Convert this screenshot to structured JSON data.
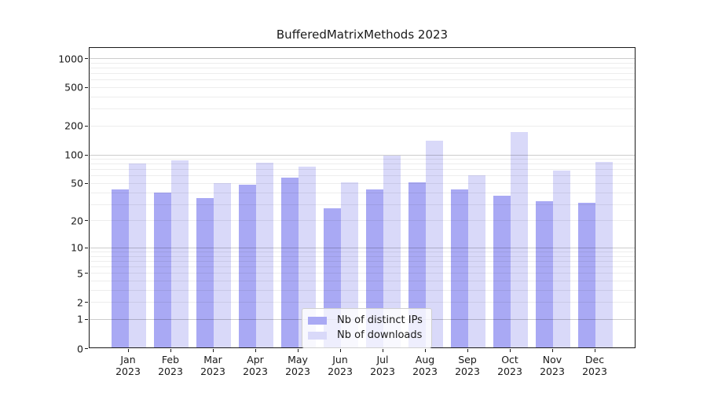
{
  "chart_data": {
    "type": "bar",
    "title": "BufferedMatrixMethods 2023",
    "categories": [
      "Jan\n2023",
      "Feb\n2023",
      "Mar\n2023",
      "Apr\n2023",
      "May\n2023",
      "Jun\n2023",
      "Jul\n2023",
      "Aug\n2023",
      "Sep\n2023",
      "Oct\n2023",
      "Nov\n2023",
      "Dec\n2023"
    ],
    "series": [
      {
        "name": "Nb of distinct IPs",
        "color": "#a9a9f4",
        "values": [
          43,
          40,
          35,
          48,
          57,
          27,
          43,
          51,
          43,
          37,
          32,
          31
        ]
      },
      {
        "name": "Nb of downloads",
        "color": "#d9d9f9",
        "values": [
          80,
          87,
          50,
          82,
          74,
          51,
          97,
          140,
          61,
          170,
          68,
          84
        ]
      }
    ],
    "yscale": "log1p",
    "yticks": [
      0,
      1,
      2,
      5,
      10,
      20,
      50,
      100,
      200,
      500,
      1000
    ],
    "ylim": [
      0,
      1300
    ],
    "grid": "on",
    "legend_position": "lower-center"
  }
}
